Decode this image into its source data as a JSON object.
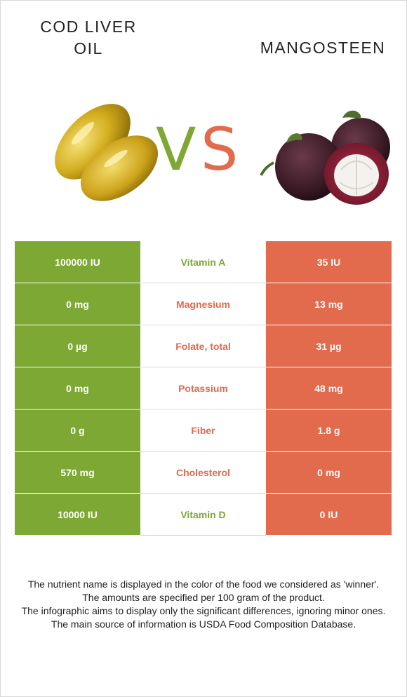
{
  "left_food": {
    "name": "COD LIVER OIL"
  },
  "right_food": {
    "name": "MANGOSTEEN"
  },
  "vs": {
    "v": "V",
    "s": "S"
  },
  "colors": {
    "left": "#7ca833",
    "right": "#e26a4d"
  },
  "rows": [
    {
      "nutrient": "Vitamin A",
      "left": "100000 IU",
      "right": "35 IU",
      "winner": "left"
    },
    {
      "nutrient": "Magnesium",
      "left": "0 mg",
      "right": "13 mg",
      "winner": "right"
    },
    {
      "nutrient": "Folate, total",
      "left": "0 µg",
      "right": "31 µg",
      "winner": "right"
    },
    {
      "nutrient": "Potassium",
      "left": "0 mg",
      "right": "48 mg",
      "winner": "right"
    },
    {
      "nutrient": "Fiber",
      "left": "0 g",
      "right": "1.8 g",
      "winner": "right"
    },
    {
      "nutrient": "Cholesterol",
      "left": "570 mg",
      "right": "0 mg",
      "winner": "right"
    },
    {
      "nutrient": "Vitamin D",
      "left": "10000 IU",
      "right": "0 IU",
      "winner": "left"
    }
  ],
  "notes": [
    "The nutrient name is displayed in the color of the food we considered as 'winner'.",
    "The amounts are specified per 100 gram of the product.",
    "The infographic aims to display only the significant differences, ignoring minor ones.",
    "The main source of information is USDA Food Composition Database."
  ]
}
